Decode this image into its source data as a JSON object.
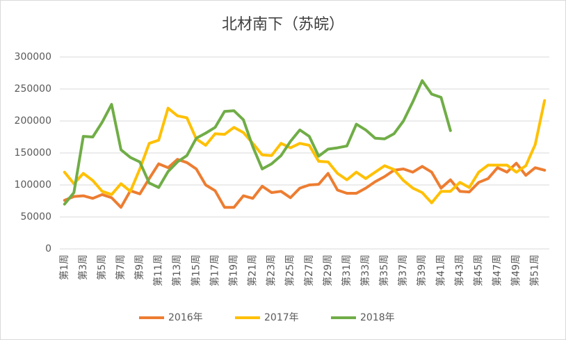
{
  "chart_data": {
    "type": "line",
    "title": "北材南下（苏皖）",
    "categories": [
      "第1周",
      null,
      "第3周",
      null,
      "第5周",
      null,
      "第7周",
      null,
      "第9周",
      null,
      "第11周",
      null,
      "第13周",
      null,
      "第15周",
      null,
      "第17周",
      null,
      "第19周",
      null,
      "第21周",
      null,
      "第23周",
      null,
      "第25周",
      null,
      "第27周",
      null,
      "第29周",
      null,
      "第31周",
      null,
      "第33周",
      null,
      "第35周",
      null,
      "第37周",
      null,
      "第39周",
      null,
      "第41周",
      null,
      "第43周",
      null,
      "第45周",
      null,
      "第47周",
      null,
      "第49周",
      null,
      "第51周",
      null
    ],
    "series": [
      {
        "name": "2016年",
        "color": "#ed7d31",
        "values": [
          76000,
          82000,
          83000,
          79000,
          85000,
          80000,
          65000,
          91000,
          86000,
          110000,
          133000,
          127000,
          140000,
          135000,
          125000,
          100000,
          91000,
          65000,
          65000,
          83000,
          79000,
          98000,
          88000,
          90000,
          80000,
          95000,
          100000,
          101000,
          118000,
          92000,
          87000,
          87000,
          95000,
          105000,
          113000,
          123000,
          125000,
          120000,
          129000,
          120000,
          95000,
          108000,
          90000,
          89000,
          104000,
          110000,
          127000,
          120000,
          134000,
          115000,
          127000,
          123000
        ]
      },
      {
        "name": "2017年",
        "color": "#ffc000",
        "values": [
          120000,
          102000,
          118000,
          107000,
          90000,
          85000,
          102000,
          90000,
          125000,
          165000,
          170000,
          220000,
          208000,
          205000,
          172000,
          162000,
          180000,
          179000,
          190000,
          182000,
          165000,
          147000,
          146000,
          165000,
          158000,
          165000,
          162000,
          137000,
          136000,
          118000,
          108000,
          120000,
          110000,
          120000,
          130000,
          124000,
          107000,
          95000,
          88000,
          72000,
          90000,
          90000,
          104000,
          96000,
          120000,
          131000,
          131000,
          131000,
          120000,
          130000,
          163000,
          232000
        ]
      },
      {
        "name": "2018年",
        "color": "#70ad47",
        "values": [
          70000,
          88000,
          176000,
          175000,
          198000,
          226000,
          155000,
          143000,
          136000,
          103000,
          96000,
          121000,
          136000,
          146000,
          173000,
          181000,
          190000,
          215000,
          216000,
          202000,
          160000,
          125000,
          133000,
          146000,
          168000,
          186000,
          176000,
          145000,
          156000,
          158000,
          161000,
          195000,
          186000,
          173000,
          172000,
          180000,
          200000,
          230000,
          263000,
          242000,
          237000,
          185000,
          null,
          null,
          null,
          null,
          null,
          null,
          null,
          null,
          null,
          null
        ]
      }
    ],
    "ylim": [
      0,
      300000
    ],
    "yticks": [
      0,
      50000,
      100000,
      150000,
      200000,
      250000,
      300000
    ],
    "grid": true,
    "legend": "bottom"
  }
}
